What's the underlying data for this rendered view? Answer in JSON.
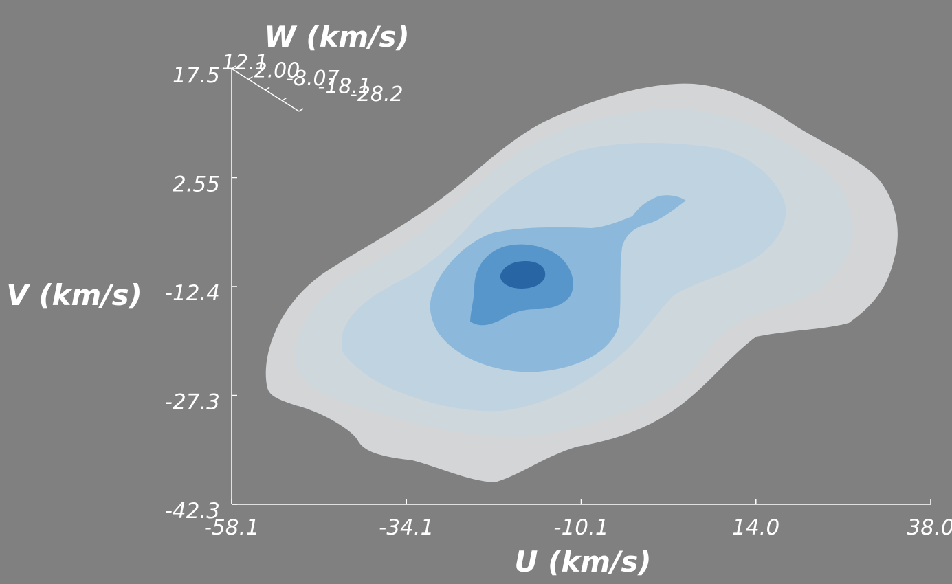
{
  "chart_data": {
    "type": "contour3d",
    "title": "",
    "xlabel": "U (km/s)",
    "ylabel": "V (km/s)",
    "zlabel": "W (km/s)",
    "xlim": [
      -58.1,
      38.0
    ],
    "ylim": [
      -42.3,
      17.5
    ],
    "zlim": [
      -28.2,
      12.1
    ],
    "x_ticks": [
      "-58.1",
      "-34.1",
      "-10.1",
      "14.0",
      "38.0"
    ],
    "y_ticks": [
      "-42.3",
      "-27.3",
      "-12.4",
      "2.55",
      "17.5"
    ],
    "z_ticks": [
      "12.1",
      "2.00",
      "-8.07",
      "-18.1",
      "-28.2"
    ],
    "surface_colors": [
      "#dadcde",
      "#cdd7dc",
      "#bdd2e0",
      "#7fb2d9",
      "#4d8fc8",
      "#245fa0"
    ],
    "background": "#808080",
    "axis_color": "#ffffff"
  }
}
